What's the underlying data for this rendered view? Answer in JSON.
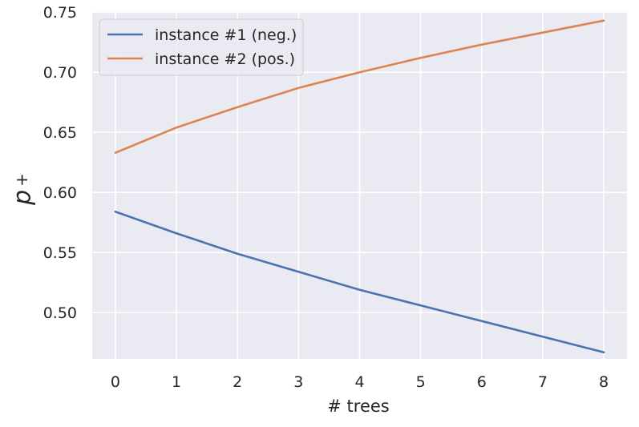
{
  "chart_data": {
    "type": "line",
    "title": "",
    "xlabel": "# trees",
    "ylabel_main": "p",
    "ylabel_sub": "+",
    "x": [
      0,
      1,
      2,
      3,
      4,
      5,
      6,
      7,
      8
    ],
    "xticks": [
      "0",
      "1",
      "2",
      "3",
      "4",
      "5",
      "6",
      "7",
      "8"
    ],
    "yticks": [
      "0.50",
      "0.55",
      "0.60",
      "0.65",
      "0.70",
      "0.75"
    ],
    "xlim": [
      -0.38,
      8.38
    ],
    "ylim": [
      0.4615,
      0.7508
    ],
    "grid": true,
    "legend_position": "top-left",
    "series": [
      {
        "name": "instance #1 (neg.)",
        "color": "#4c72b0",
        "values": [
          0.584,
          0.566,
          0.549,
          0.534,
          0.519,
          0.506,
          0.493,
          0.48,
          0.467
        ]
      },
      {
        "name": "instance #2 (pos.)",
        "color": "#dd8452",
        "values": [
          0.633,
          0.654,
          0.671,
          0.687,
          0.7,
          0.712,
          0.723,
          0.733,
          0.743
        ]
      }
    ]
  }
}
